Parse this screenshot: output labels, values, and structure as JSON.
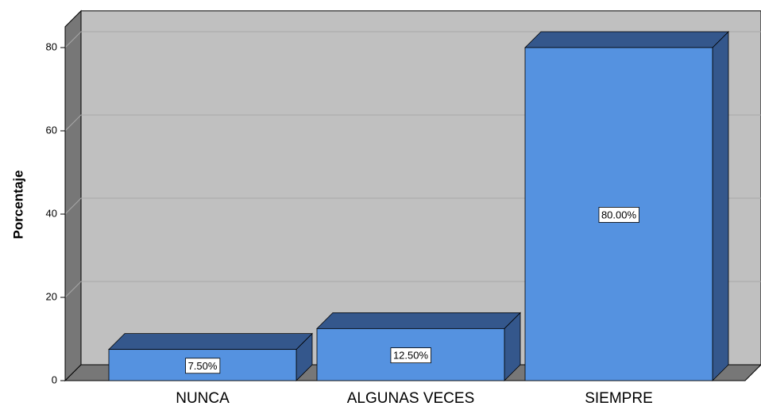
{
  "chart_data": {
    "type": "bar",
    "y_label": "Porcentaje",
    "categories": [
      "NUNCA",
      "ALGUNAS VECES",
      "SIEMPRE"
    ],
    "values": [
      7.5,
      12.5,
      80
    ],
    "value_labels": [
      "7.50%",
      "12.50%",
      "80.00%"
    ],
    "color": "#5592e0",
    "ylim": [
      0,
      85
    ],
    "yticks": [
      0,
      20,
      40,
      60,
      80
    ],
    "grid": true
  }
}
